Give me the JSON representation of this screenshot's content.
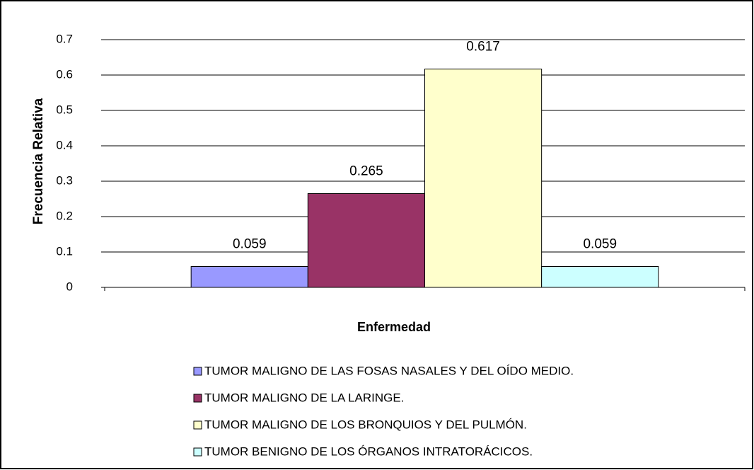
{
  "chart_data": {
    "type": "bar",
    "x_label": "Enfermedad",
    "y_label": "Frecuencia Relativa",
    "categories": [
      null
    ],
    "series": [
      {
        "name": "TUMOR MALIGNO DE LAS FOSAS NASALES Y DEL OÍDO MEDIO.",
        "color": "#9999ff",
        "values": [
          0.059
        ]
      },
      {
        "name": "TUMOR MALIGNO DE LA LARINGE.",
        "color": "#993366",
        "values": [
          0.265
        ]
      },
      {
        "name": "TUMOR MALIGNO DE LOS BRONQUIOS Y DEL PULMÓN.",
        "color": "#ffffcc",
        "values": [
          0.617
        ]
      },
      {
        "name": "TUMOR BENIGNO DE LOS ÓRGANOS INTRATORÁCICOS.",
        "color": "#ccffff",
        "values": [
          0.059
        ]
      }
    ],
    "ylim": [
      0,
      0.7
    ],
    "yticks": [
      0,
      0.1,
      0.2,
      0.3,
      0.4,
      0.5,
      0.6,
      0.7
    ],
    "grid": true,
    "legend": "bottom"
  }
}
